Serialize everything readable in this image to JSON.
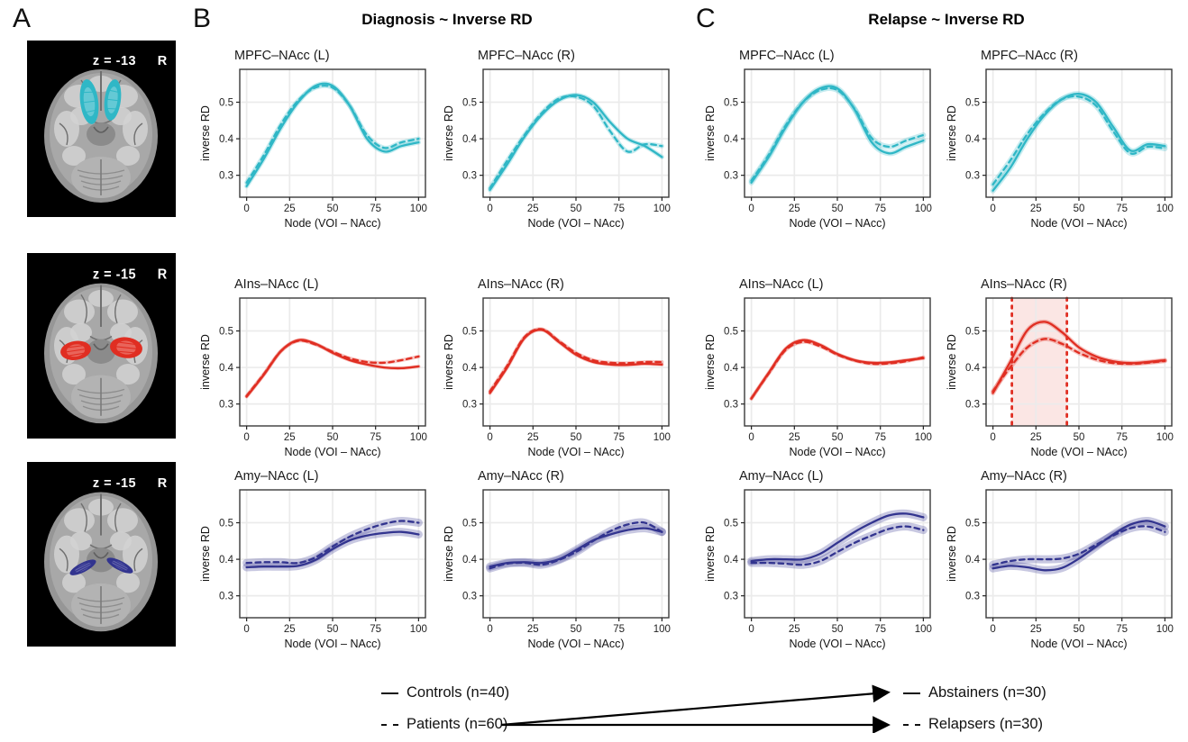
{
  "figure": {
    "panel_a_label": "A",
    "panel_b_label": "B",
    "panel_c_label": "C",
    "panel_b_title": "Diagnosis ~ Inverse RD",
    "panel_c_title": "Relapse ~ Inverse RD"
  },
  "colors": {
    "mpfc": "#2FB7C6",
    "ains": "#E02E22",
    "amy": "#32348F",
    "mpfc_light": "#8FD9E2",
    "ains_light": "#F09288",
    "amy_light": "#8A8BC4",
    "grid": "#EBEBEB",
    "panel_border": "#3A3A3A",
    "highlight_fill": "rgba(224,46,34,0.12)"
  },
  "brains": [
    {
      "z_label": "z = -13",
      "side_label": "R",
      "tract": "MPFC-NAcc",
      "variant": "mpfc",
      "color": "#2FB7C6"
    },
    {
      "z_label": "z = -15",
      "side_label": "R",
      "tract": "AIns-NAcc",
      "variant": "ains",
      "color": "#E02E22"
    },
    {
      "z_label": "z = -15",
      "side_label": "R",
      "tract": "Amy-NAcc",
      "variant": "amy",
      "color": "#32348F"
    }
  ],
  "legend": {
    "left": [
      {
        "style": "solid",
        "label": "Controls (n=40)"
      },
      {
        "style": "dashed",
        "label": "Patients (n=60)"
      }
    ],
    "right": [
      {
        "style": "solid",
        "label": "Abstainers (n=30)"
      },
      {
        "style": "dashed",
        "label": "Relapsers (n=30)"
      }
    ]
  },
  "chart_data": [
    {
      "type": "line",
      "panel": "B",
      "title": "MPFC–NAcc (L)",
      "color": "#2FB7C6",
      "ribbon": 5,
      "xlabel": "Node (VOI – NAcc)",
      "ylabel": "inverse RD",
      "xticks": [
        0,
        25,
        50,
        75,
        100
      ],
      "yticks": [
        0.3,
        0.4,
        0.5
      ],
      "xlim": [
        -4,
        104
      ],
      "ylim": [
        0.24,
        0.59
      ],
      "x": [
        0,
        10,
        20,
        30,
        40,
        50,
        60,
        70,
        80,
        90,
        100
      ],
      "series": [
        {
          "name": "Controls",
          "style": "solid",
          "values": [
            0.27,
            0.345,
            0.43,
            0.5,
            0.545,
            0.545,
            0.49,
            0.4,
            0.365,
            0.38,
            0.39
          ]
        },
        {
          "name": "Patients",
          "style": "dashed",
          "values": [
            0.28,
            0.355,
            0.44,
            0.505,
            0.54,
            0.54,
            0.49,
            0.41,
            0.375,
            0.39,
            0.4
          ]
        }
      ]
    },
    {
      "type": "line",
      "panel": "B",
      "title": "MPFC–NAcc (R)",
      "color": "#2FB7C6",
      "ribbon": 5,
      "xlabel": "Node (VOI – NAcc)",
      "ylabel": "inverse RD",
      "xticks": [
        0,
        25,
        50,
        75,
        100
      ],
      "yticks": [
        0.3,
        0.4,
        0.5
      ],
      "xlim": [
        -4,
        104
      ],
      "ylim": [
        0.24,
        0.59
      ],
      "x": [
        0,
        10,
        20,
        30,
        40,
        50,
        60,
        70,
        80,
        90,
        100
      ],
      "series": [
        {
          "name": "Controls",
          "style": "solid",
          "values": [
            0.26,
            0.33,
            0.405,
            0.465,
            0.505,
            0.52,
            0.5,
            0.445,
            0.4,
            0.38,
            0.35
          ]
        },
        {
          "name": "Patients",
          "style": "dashed",
          "values": [
            0.265,
            0.34,
            0.41,
            0.47,
            0.51,
            0.515,
            0.49,
            0.42,
            0.365,
            0.385,
            0.38
          ]
        }
      ]
    },
    {
      "type": "line",
      "panel": "B",
      "title": "AIns–NAcc (L)",
      "color": "#E02E22",
      "ribbon": 4,
      "xlabel": "Node (VOI – NAcc)",
      "ylabel": "inverse RD",
      "xticks": [
        0,
        25,
        50,
        75,
        100
      ],
      "yticks": [
        0.3,
        0.4,
        0.5
      ],
      "xlim": [
        -4,
        104
      ],
      "ylim": [
        0.24,
        0.59
      ],
      "x": [
        0,
        10,
        20,
        30,
        40,
        50,
        60,
        70,
        80,
        90,
        100
      ],
      "series": [
        {
          "name": "Controls",
          "style": "solid",
          "values": [
            0.32,
            0.38,
            0.445,
            0.475,
            0.465,
            0.44,
            0.42,
            0.408,
            0.4,
            0.398,
            0.403
          ]
        },
        {
          "name": "Patients",
          "style": "dashed",
          "values": [
            0.322,
            0.382,
            0.445,
            0.473,
            0.463,
            0.443,
            0.425,
            0.415,
            0.413,
            0.42,
            0.43
          ]
        }
      ]
    },
    {
      "type": "line",
      "panel": "B",
      "title": "AIns–NAcc (R)",
      "color": "#E02E22",
      "ribbon": 4,
      "xlabel": "Node (VOI – NAcc)",
      "ylabel": "inverse RD",
      "xticks": [
        0,
        25,
        50,
        75,
        100
      ],
      "yticks": [
        0.3,
        0.4,
        0.5
      ],
      "xlim": [
        -4,
        104
      ],
      "ylim": [
        0.24,
        0.59
      ],
      "x": [
        0,
        10,
        20,
        30,
        40,
        50,
        60,
        70,
        80,
        90,
        100
      ],
      "series": [
        {
          "name": "Controls",
          "style": "solid",
          "values": [
            0.33,
            0.4,
            0.48,
            0.503,
            0.47,
            0.435,
            0.415,
            0.408,
            0.407,
            0.41,
            0.408
          ]
        },
        {
          "name": "Patients",
          "style": "dashed",
          "values": [
            0.335,
            0.405,
            0.483,
            0.505,
            0.473,
            0.44,
            0.42,
            0.413,
            0.412,
            0.415,
            0.415
          ]
        }
      ]
    },
    {
      "type": "line",
      "panel": "B",
      "title": "Amy–NAcc (L)",
      "color": "#32348F",
      "ribbon": 9,
      "xlabel": "Node (VOI – NAcc)",
      "ylabel": "inverse RD",
      "xticks": [
        0,
        25,
        50,
        75,
        100
      ],
      "yticks": [
        0.3,
        0.4,
        0.5
      ],
      "xlim": [
        -4,
        104
      ],
      "ylim": [
        0.24,
        0.59
      ],
      "x": [
        0,
        10,
        20,
        30,
        40,
        50,
        60,
        70,
        80,
        90,
        100
      ],
      "series": [
        {
          "name": "Controls",
          "style": "solid",
          "values": [
            0.378,
            0.38,
            0.38,
            0.382,
            0.398,
            0.428,
            0.452,
            0.465,
            0.472,
            0.475,
            0.468
          ]
        },
        {
          "name": "Patients",
          "style": "dashed",
          "values": [
            0.39,
            0.392,
            0.392,
            0.39,
            0.405,
            0.435,
            0.462,
            0.482,
            0.497,
            0.505,
            0.5
          ]
        }
      ]
    },
    {
      "type": "line",
      "panel": "B",
      "title": "Amy–NAcc (R)",
      "color": "#32348F",
      "ribbon": 9,
      "xlabel": "Node (VOI – NAcc)",
      "ylabel": "inverse RD",
      "xticks": [
        0,
        25,
        50,
        75,
        100
      ],
      "yticks": [
        0.3,
        0.4,
        0.5
      ],
      "xlim": [
        -4,
        104
      ],
      "ylim": [
        0.24,
        0.59
      ],
      "x": [
        0,
        10,
        20,
        30,
        40,
        50,
        60,
        70,
        80,
        90,
        100
      ],
      "series": [
        {
          "name": "Controls",
          "style": "solid",
          "values": [
            0.38,
            0.39,
            0.392,
            0.39,
            0.4,
            0.425,
            0.452,
            0.468,
            0.48,
            0.485,
            0.475
          ]
        },
        {
          "name": "Patients",
          "style": "dashed",
          "values": [
            0.375,
            0.388,
            0.39,
            0.385,
            0.398,
            0.42,
            0.45,
            0.477,
            0.495,
            0.5,
            0.475
          ]
        }
      ]
    },
    {
      "type": "line",
      "panel": "C",
      "title": "MPFC–NAcc (L)",
      "color": "#2FB7C6",
      "ribbon": 6,
      "xlabel": "Node (VOI – NAcc)",
      "ylabel": "inverse RD",
      "xticks": [
        0,
        25,
        50,
        75,
        100
      ],
      "yticks": [
        0.3,
        0.4,
        0.5
      ],
      "xlim": [
        -4,
        104
      ],
      "ylim": [
        0.24,
        0.59
      ],
      "x": [
        0,
        10,
        20,
        30,
        40,
        50,
        60,
        70,
        80,
        90,
        100
      ],
      "series": [
        {
          "name": "Abstainers",
          "style": "solid",
          "values": [
            0.28,
            0.35,
            0.432,
            0.5,
            0.538,
            0.538,
            0.48,
            0.39,
            0.36,
            0.378,
            0.395
          ]
        },
        {
          "name": "Relapsers",
          "style": "dashed",
          "values": [
            0.285,
            0.355,
            0.437,
            0.5,
            0.533,
            0.533,
            0.482,
            0.402,
            0.378,
            0.395,
            0.41
          ]
        }
      ]
    },
    {
      "type": "line",
      "panel": "C",
      "title": "MPFC–NAcc (R)",
      "color": "#2FB7C6",
      "ribbon": 6,
      "xlabel": "Node (VOI – NAcc)",
      "ylabel": "inverse RD",
      "xticks": [
        0,
        25,
        50,
        75,
        100
      ],
      "yticks": [
        0.3,
        0.4,
        0.5
      ],
      "xlim": [
        -4,
        104
      ],
      "ylim": [
        0.24,
        0.59
      ],
      "x": [
        0,
        10,
        20,
        30,
        40,
        50,
        60,
        70,
        80,
        90,
        100
      ],
      "series": [
        {
          "name": "Abstainers",
          "style": "solid",
          "values": [
            0.258,
            0.32,
            0.4,
            0.465,
            0.508,
            0.523,
            0.5,
            0.432,
            0.368,
            0.385,
            0.38
          ]
        },
        {
          "name": "Relapsers",
          "style": "dashed",
          "values": [
            0.275,
            0.34,
            0.413,
            0.47,
            0.508,
            0.515,
            0.49,
            0.42,
            0.36,
            0.378,
            0.373
          ]
        }
      ]
    },
    {
      "type": "line",
      "panel": "C",
      "title": "AIns–NAcc (L)",
      "color": "#E02E22",
      "ribbon": 4,
      "xlabel": "Node (VOI – NAcc)",
      "ylabel": "inverse RD",
      "xticks": [
        0,
        25,
        50,
        75,
        100
      ],
      "yticks": [
        0.3,
        0.4,
        0.5
      ],
      "xlim": [
        -4,
        104
      ],
      "ylim": [
        0.24,
        0.59
      ],
      "x": [
        0,
        10,
        20,
        30,
        40,
        50,
        60,
        70,
        80,
        90,
        100
      ],
      "series": [
        {
          "name": "Abstainers",
          "style": "solid",
          "values": [
            0.315,
            0.385,
            0.452,
            0.475,
            0.462,
            0.437,
            0.42,
            0.413,
            0.414,
            0.42,
            0.425
          ]
        },
        {
          "name": "Relapsers",
          "style": "dashed",
          "values": [
            0.315,
            0.383,
            0.448,
            0.47,
            0.458,
            0.435,
            0.419,
            0.41,
            0.411,
            0.417,
            0.428
          ]
        }
      ]
    },
    {
      "type": "line",
      "panel": "C",
      "title": "AIns–NAcc (R)",
      "color": "#E02E22",
      "ribbon": 5,
      "xlabel": "Node (VOI – NAcc)",
      "ylabel": "inverse RD",
      "xticks": [
        0,
        25,
        50,
        75,
        100
      ],
      "yticks": [
        0.3,
        0.4,
        0.5
      ],
      "xlim": [
        -4,
        104
      ],
      "ylim": [
        0.24,
        0.59
      ],
      "x": [
        0,
        10,
        20,
        30,
        40,
        50,
        60,
        70,
        80,
        90,
        100
      ],
      "highlight": {
        "from": 11,
        "to": 43
      },
      "series": [
        {
          "name": "Abstainers",
          "style": "solid",
          "values": [
            0.33,
            0.415,
            0.502,
            0.525,
            0.497,
            0.455,
            0.43,
            0.417,
            0.412,
            0.415,
            0.42
          ]
        },
        {
          "name": "Relapsers",
          "style": "dashed",
          "values": [
            0.335,
            0.4,
            0.455,
            0.478,
            0.465,
            0.44,
            0.422,
            0.412,
            0.41,
            0.413,
            0.418
          ]
        }
      ]
    },
    {
      "type": "line",
      "panel": "C",
      "title": "Amy–NAcc (L)",
      "color": "#32348F",
      "ribbon": 9,
      "xlabel": "Node (VOI – NAcc)",
      "ylabel": "inverse RD",
      "xticks": [
        0,
        25,
        50,
        75,
        100
      ],
      "yticks": [
        0.3,
        0.4,
        0.5
      ],
      "xlim": [
        -4,
        104
      ],
      "ylim": [
        0.24,
        0.59
      ],
      "x": [
        0,
        10,
        20,
        30,
        40,
        50,
        60,
        70,
        80,
        90,
        100
      ],
      "series": [
        {
          "name": "Abstainers",
          "style": "solid",
          "values": [
            0.395,
            0.4,
            0.4,
            0.4,
            0.415,
            0.445,
            0.475,
            0.5,
            0.52,
            0.525,
            0.515
          ]
        },
        {
          "name": "Relapsers",
          "style": "dashed",
          "values": [
            0.39,
            0.39,
            0.388,
            0.385,
            0.395,
            0.42,
            0.445,
            0.465,
            0.483,
            0.49,
            0.48
          ]
        }
      ]
    },
    {
      "type": "line",
      "panel": "C",
      "title": "Amy–NAcc (R)",
      "color": "#32348F",
      "ribbon": 9,
      "xlabel": "Node (VOI – NAcc)",
      "ylabel": "inverse RD",
      "xticks": [
        0,
        25,
        50,
        75,
        100
      ],
      "yticks": [
        0.3,
        0.4,
        0.5
      ],
      "xlim": [
        -4,
        104
      ],
      "ylim": [
        0.24,
        0.59
      ],
      "x": [
        0,
        10,
        20,
        30,
        40,
        50,
        60,
        70,
        80,
        90,
        100
      ],
      "series": [
        {
          "name": "Abstainers",
          "style": "solid",
          "values": [
            0.375,
            0.382,
            0.378,
            0.37,
            0.376,
            0.402,
            0.435,
            0.468,
            0.495,
            0.505,
            0.49
          ]
        },
        {
          "name": "Relapsers",
          "style": "dashed",
          "values": [
            0.385,
            0.395,
            0.4,
            0.4,
            0.402,
            0.415,
            0.44,
            0.465,
            0.485,
            0.49,
            0.475
          ]
        }
      ]
    }
  ]
}
